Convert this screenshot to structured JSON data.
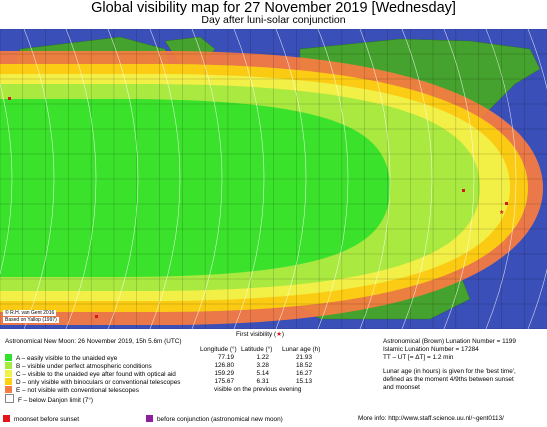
{
  "title": "Global visibility map for 27 November 2019 [Wednesday]",
  "subtitle": "Day after luni-solar conjunction",
  "map": {
    "credit_line1": "© R.H. van Gent 2016",
    "credit_line2": "Based on Yallop (1997)",
    "colors": {
      "A": "#33e12b",
      "B": "#a5ea3f",
      "C": "#f1f14a",
      "D": "#fcd210",
      "E": "#f77c41",
      "moonset": "#e4141a",
      "conjunction": "#8e1ea0",
      "ocean": "#3a4fb8",
      "land": "#46a22e"
    }
  },
  "legend": {
    "new_moon": "Astronomical New Moon: 26 November 2019, 15h 5.6m (UTC)",
    "first_visibility_label": "First visibility (",
    "first_visibility_star": "★",
    "first_visibility_end": ")",
    "col_longitude": "Longitude (°)",
    "col_latitude": "Latitude (°)",
    "col_lunar_age": "Lunar age (h)",
    "rows": [
      {
        "key": "A",
        "text": "A – easily visible to the unaided eye",
        "lon": "77.19",
        "lat": "1.22",
        "age": "21.93"
      },
      {
        "key": "B",
        "text": "B – visible under perfect atmospheric conditions",
        "lon": "126.80",
        "lat": "3.28",
        "age": "18.52"
      },
      {
        "key": "C",
        "text": "C – visible to the unaided eye after found with optical aid",
        "lon": "159.29",
        "lat": "5.14",
        "age": "16.27"
      },
      {
        "key": "D",
        "text": "D – only visible with binoculars or conventional telescopes",
        "lon": "175.67",
        "lat": "6.31",
        "age": "15.13"
      },
      {
        "key": "E",
        "text": "E – not visible with conventional telescopes",
        "note": "visible on the previous evening"
      },
      {
        "key": "F",
        "text": "F – below Danjon limit (7°)"
      }
    ],
    "moonset_label": "moonset before sunset",
    "conjunction_label": "before conjunction (astronomical new moon)"
  },
  "info": {
    "lunation_brown": "Astronomical (Brown) Lunation Number = 1199",
    "lunation_islamic": "Islamic Lunation Number = 17284",
    "tt_ut": "TT – UT [= ΔT] = 1.2 min",
    "lunar_age_note_1": "Lunar age (in hours) is given for the 'best time',",
    "lunar_age_note_2": "defined as the moment 4/9ths between sunset",
    "lunar_age_note_3": "and moonset",
    "more_info": "More info: http://www.staff.science.uu.nl/~gent0113/"
  }
}
